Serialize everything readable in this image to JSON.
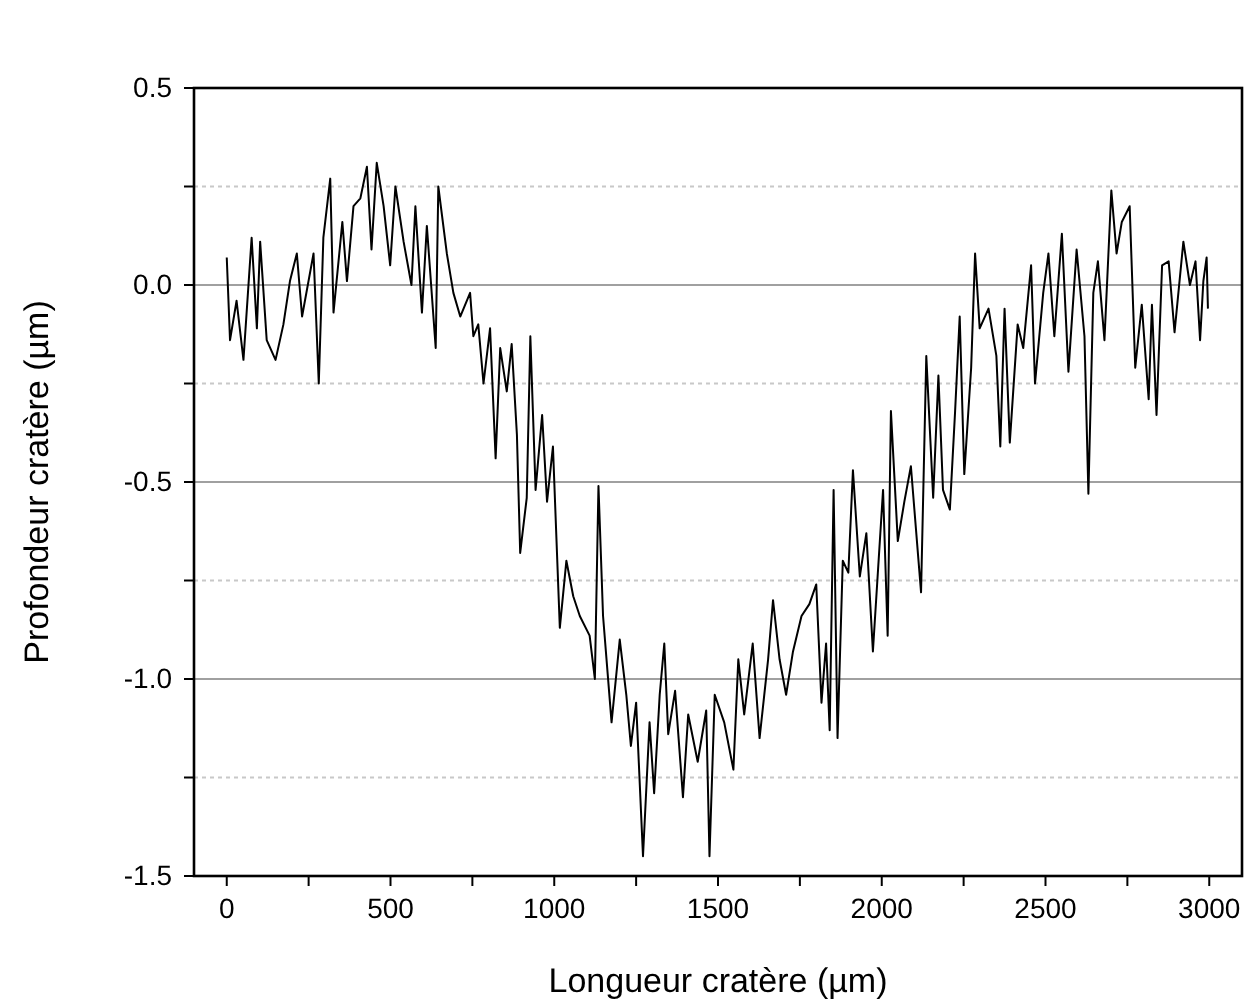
{
  "chart_data": {
    "type": "line",
    "xlabel": "Longueur cratère (µm)",
    "ylabel": "Profondeur cratère (µm)",
    "xlim": [
      -100,
      3100
    ],
    "ylim": [
      -1.5,
      0.5
    ],
    "xticks": [
      0,
      {
        "value": 250,
        "label": null
      },
      500,
      {
        "value": 750,
        "label": null
      },
      1000,
      {
        "value": 1250,
        "label": null
      },
      1500,
      {
        "value": 1750,
        "label": null
      },
      2000,
      {
        "value": 2250,
        "label": null
      },
      2500,
      {
        "value": 2750,
        "label": null
      },
      3000
    ],
    "yticks": [
      {
        "value": -1.5,
        "label": "-1.5"
      },
      {
        "value": -1.25,
        "label": null
      },
      {
        "value": -1.0,
        "label": "-1.0"
      },
      {
        "value": -0.75,
        "label": null
      },
      {
        "value": -0.5,
        "label": "-0.5"
      },
      {
        "value": -0.25,
        "label": null
      },
      {
        "value": 0,
        "label": "0.0"
      },
      {
        "value": 0.25,
        "label": null
      },
      {
        "value": 0.5,
        "label": "0.5"
      }
    ],
    "grid": "y",
    "marker": "none",
    "line_style": "solid",
    "series": [
      {
        "color": "#000000",
        "x": [
          0,
          10,
          30,
          51,
          76,
          92,
          102,
          122,
          149,
          173,
          193,
          214,
          230,
          265,
          281,
          295,
          316,
          326,
          353,
          367,
          387,
          408,
          428,
          442,
          458,
          479,
          499,
          515,
          540,
          564,
          576,
          596,
          611,
          638,
          646,
          672,
          692,
          713,
          743,
          753,
          768,
          784,
          804,
          821,
          835,
          855,
          870,
          886,
          896,
          916,
          927,
          943,
          963,
          978,
          996,
          1017,
          1037,
          1058,
          1078,
          1108,
          1124,
          1135,
          1149,
          1175,
          1200,
          1220,
          1234,
          1250,
          1271,
          1291,
          1305,
          1322,
          1336,
          1348,
          1369,
          1393,
          1409,
          1438,
          1464,
          1474,
          1490,
          1519,
          1547,
          1562,
          1580,
          1606,
          1627,
          1653,
          1668,
          1688,
          1708,
          1729,
          1755,
          1779,
          1800,
          1816,
          1830,
          1841,
          1853,
          1865,
          1881,
          1898,
          1912,
          1933,
          1953,
          1973,
          2004,
          2018,
          2028,
          2049,
          2069,
          2089,
          2120,
          2136,
          2157,
          2173,
          2187,
          2208,
          2224,
          2238,
          2252,
          2273,
          2285,
          2299,
          2326,
          2350,
          2362,
          2375,
          2391,
          2415,
          2432,
          2456,
          2468,
          2493,
          2509,
          2527,
          2550,
          2570,
          2595,
          2619,
          2631,
          2646,
          2660,
          2680,
          2701,
          2717,
          2733,
          2757,
          2774,
          2794,
          2815,
          2825,
          2839,
          2856,
          2876,
          2894,
          2921,
          2941,
          2958,
          2972,
          2982,
          2992,
          2996
        ],
        "values": [
          0.07,
          -0.14,
          -0.04,
          -0.19,
          0.12,
          -0.11,
          0.11,
          -0.14,
          -0.19,
          -0.1,
          0.01,
          0.08,
          -0.08,
          0.08,
          -0.25,
          0.12,
          0.27,
          -0.07,
          0.16,
          0.01,
          0.2,
          0.22,
          0.3,
          0.09,
          0.31,
          0.2,
          0.05,
          0.25,
          0.11,
          0.0,
          0.2,
          -0.07,
          0.15,
          -0.16,
          0.25,
          0.08,
          -0.02,
          -0.08,
          -0.02,
          -0.13,
          -0.1,
          -0.25,
          -0.11,
          -0.44,
          -0.16,
          -0.27,
          -0.15,
          -0.38,
          -0.68,
          -0.54,
          -0.13,
          -0.52,
          -0.33,
          -0.55,
          -0.41,
          -0.87,
          -0.7,
          -0.79,
          -0.84,
          -0.89,
          -1.0,
          -0.51,
          -0.84,
          -1.11,
          -0.9,
          -1.04,
          -1.17,
          -1.06,
          -1.45,
          -1.11,
          -1.29,
          -1.04,
          -0.91,
          -1.14,
          -1.03,
          -1.3,
          -1.09,
          -1.21,
          -1.08,
          -1.45,
          -1.04,
          -1.11,
          -1.23,
          -0.95,
          -1.09,
          -0.91,
          -1.15,
          -0.95,
          -0.8,
          -0.95,
          -1.04,
          -0.93,
          -0.84,
          -0.81,
          -0.76,
          -1.06,
          -0.91,
          -1.13,
          -0.52,
          -1.15,
          -0.7,
          -0.73,
          -0.47,
          -0.74,
          -0.63,
          -0.93,
          -0.52,
          -0.89,
          -0.32,
          -0.65,
          -0.55,
          -0.46,
          -0.78,
          -0.18,
          -0.54,
          -0.23,
          -0.52,
          -0.57,
          -0.32,
          -0.08,
          -0.48,
          -0.21,
          0.08,
          -0.11,
          -0.06,
          -0.18,
          -0.41,
          -0.06,
          -0.4,
          -0.1,
          -0.16,
          0.05,
          -0.25,
          -0.02,
          0.08,
          -0.13,
          0.13,
          -0.22,
          0.09,
          -0.13,
          -0.53,
          -0.02,
          0.06,
          -0.14,
          0.24,
          0.08,
          0.16,
          0.2,
          -0.21,
          -0.05,
          -0.29,
          -0.05,
          -0.33,
          0.05,
          0.06,
          -0.12,
          0.11,
          0.0,
          0.06,
          -0.14,
          0.01,
          0.07,
          -0.06
        ]
      }
    ]
  }
}
